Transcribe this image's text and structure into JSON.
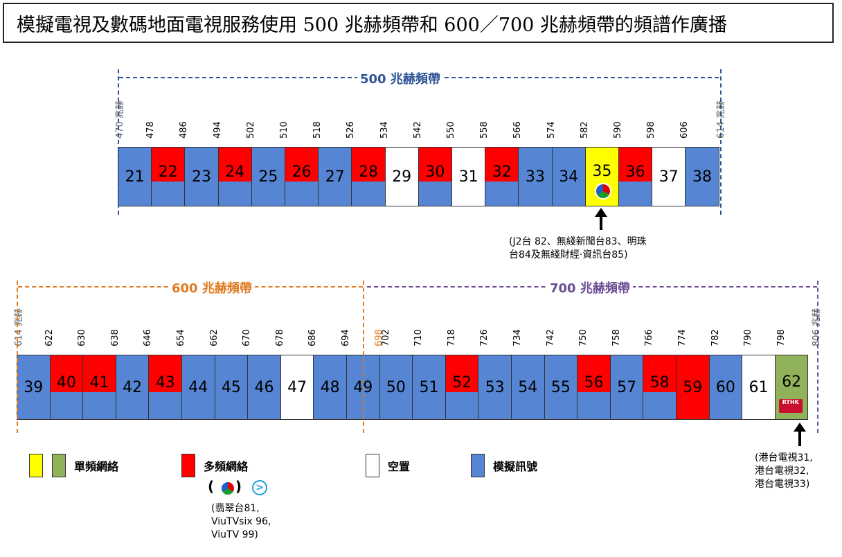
{
  "title": "模擬電視及數碼地面電視服務使用 500 兆赫頻帶和 600／700 兆赫頻帶的頻譜作廣播",
  "bands": {
    "b500": "500 兆赫頻帶",
    "b600": "600 兆赫頻帶",
    "b700": "700 兆赫頻帶"
  },
  "row1": {
    "freqs": [
      "470 兆赫",
      "478",
      "486",
      "494",
      "502",
      "510",
      "518",
      "526",
      "534",
      "542",
      "550",
      "558",
      "566",
      "574",
      "582",
      "590",
      "598",
      "606",
      "614 兆赫"
    ],
    "channels": [
      {
        "n": "21",
        "t": "blue"
      },
      {
        "n": "22",
        "t": "red"
      },
      {
        "n": "23",
        "t": "blue"
      },
      {
        "n": "24",
        "t": "red"
      },
      {
        "n": "25",
        "t": "blue"
      },
      {
        "n": "26",
        "t": "red"
      },
      {
        "n": "27",
        "t": "blue"
      },
      {
        "n": "28",
        "t": "red"
      },
      {
        "n": "29",
        "t": "white"
      },
      {
        "n": "30",
        "t": "red"
      },
      {
        "n": "31",
        "t": "white"
      },
      {
        "n": "32",
        "t": "red"
      },
      {
        "n": "33",
        "t": "blue"
      },
      {
        "n": "34",
        "t": "blue"
      },
      {
        "n": "35",
        "t": "yellow"
      },
      {
        "n": "36",
        "t": "red"
      },
      {
        "n": "37",
        "t": "white"
      },
      {
        "n": "38",
        "t": "blue"
      }
    ]
  },
  "row2": {
    "freqs": [
      "614 兆赫",
      "622",
      "630",
      "638",
      "646",
      "654",
      "662",
      "670",
      "678",
      "686",
      "694",
      "702",
      "710",
      "718",
      "726",
      "734",
      "742",
      "750",
      "758",
      "766",
      "774",
      "782",
      "790",
      "798",
      "806 兆赫"
    ],
    "mid_freq": "698",
    "channels": [
      {
        "n": "39",
        "t": "blue"
      },
      {
        "n": "40",
        "t": "red"
      },
      {
        "n": "41",
        "t": "red"
      },
      {
        "n": "42",
        "t": "blue"
      },
      {
        "n": "43",
        "t": "red"
      },
      {
        "n": "44",
        "t": "blue"
      },
      {
        "n": "45",
        "t": "blue"
      },
      {
        "n": "46",
        "t": "blue"
      },
      {
        "n": "47",
        "t": "white"
      },
      {
        "n": "48",
        "t": "blue"
      },
      {
        "n": "49",
        "t": "blue"
      },
      {
        "n": "50",
        "t": "blue"
      },
      {
        "n": "51",
        "t": "blue"
      },
      {
        "n": "52",
        "t": "red"
      },
      {
        "n": "53",
        "t": "blue"
      },
      {
        "n": "54",
        "t": "blue"
      },
      {
        "n": "55",
        "t": "blue"
      },
      {
        "n": "56",
        "t": "red"
      },
      {
        "n": "57",
        "t": "blue"
      },
      {
        "n": "58",
        "t": "red"
      },
      {
        "n": "59",
        "t": "solidred"
      },
      {
        "n": "60",
        "t": "blue"
      },
      {
        "n": "61",
        "t": "white"
      },
      {
        "n": "62",
        "t": "green"
      }
    ]
  },
  "notes": {
    "ch35": "(J2台 82、無綫新聞台83、明珠\n台84及無綫財經·資訊台85)",
    "ch62": "(港台電視31,\n港台電視32,\n港台電視33)",
    "mfn": "(翡翠台81,\nViuTVsix 96,\nViuTV 99)",
    "rthk_logo": "RTHK"
  },
  "legend": {
    "sfn": "單頻網絡",
    "mfn": "多頻網絡",
    "vacant": "空置",
    "analogue": "模擬訊號",
    "mfn_formula": "(   +   )"
  },
  "colors": {
    "blue": "#5585d3",
    "red": "#ff0000",
    "yellow": "#ffff00",
    "green": "#8fb25a",
    "band500": "#2f5597",
    "band600": "#e07a1f",
    "band700": "#6a4c93"
  }
}
